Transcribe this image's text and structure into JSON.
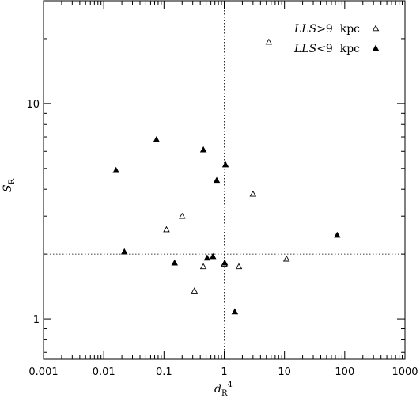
{
  "chart_data": {
    "type": "scatter",
    "xscale": "log",
    "yscale": "log",
    "xlim": [
      0.001,
      1000
    ],
    "ylim": [
      0.65,
      30
    ],
    "xticks": [
      {
        "value": 0.001,
        "label": "0.001"
      },
      {
        "value": 0.01,
        "label": "0.01"
      },
      {
        "value": 0.1,
        "label": "0.1"
      },
      {
        "value": 1,
        "label": "1"
      },
      {
        "value": 10,
        "label": "10"
      },
      {
        "value": 100,
        "label": "100"
      },
      {
        "value": 1000,
        "label": "1000"
      }
    ],
    "yticks": [
      {
        "value": 1,
        "label": "1"
      },
      {
        "value": 10,
        "label": "10"
      }
    ],
    "xlabel": {
      "main": "d",
      "sub": "R",
      "sup": "4"
    },
    "ylabel": {
      "main": "S",
      "sub": "R"
    },
    "reference_lines": {
      "x": 1,
      "y": 2
    },
    "legend_position": "top-right",
    "series": [
      {
        "name": "LLS>9 kpc",
        "legend_italic": "LLS",
        "legend_rest": ">9  kpc",
        "marker": "open-triangle",
        "points": [
          [
            5.5,
            19.3
          ],
          [
            3.0,
            3.8
          ],
          [
            0.2,
            3.0
          ],
          [
            0.11,
            2.6
          ],
          [
            10.8,
            1.9
          ],
          [
            1.75,
            1.75
          ],
          [
            0.45,
            1.75
          ],
          [
            1.0,
            1.8
          ],
          [
            0.32,
            1.35
          ]
        ]
      },
      {
        "name": "LLS<9 kpc",
        "legend_italic": "LLS",
        "legend_rest": "<9  kpc",
        "marker": "filled-triangle",
        "points": [
          [
            0.075,
            6.8
          ],
          [
            0.45,
            6.1
          ],
          [
            1.05,
            5.2
          ],
          [
            0.016,
            4.9
          ],
          [
            0.75,
            4.4
          ],
          [
            0.022,
            2.05
          ],
          [
            0.15,
            1.82
          ],
          [
            0.52,
            1.92
          ],
          [
            0.65,
            1.95
          ],
          [
            1.02,
            1.82
          ],
          [
            75,
            2.45
          ],
          [
            1.5,
            1.08
          ]
        ]
      }
    ]
  }
}
